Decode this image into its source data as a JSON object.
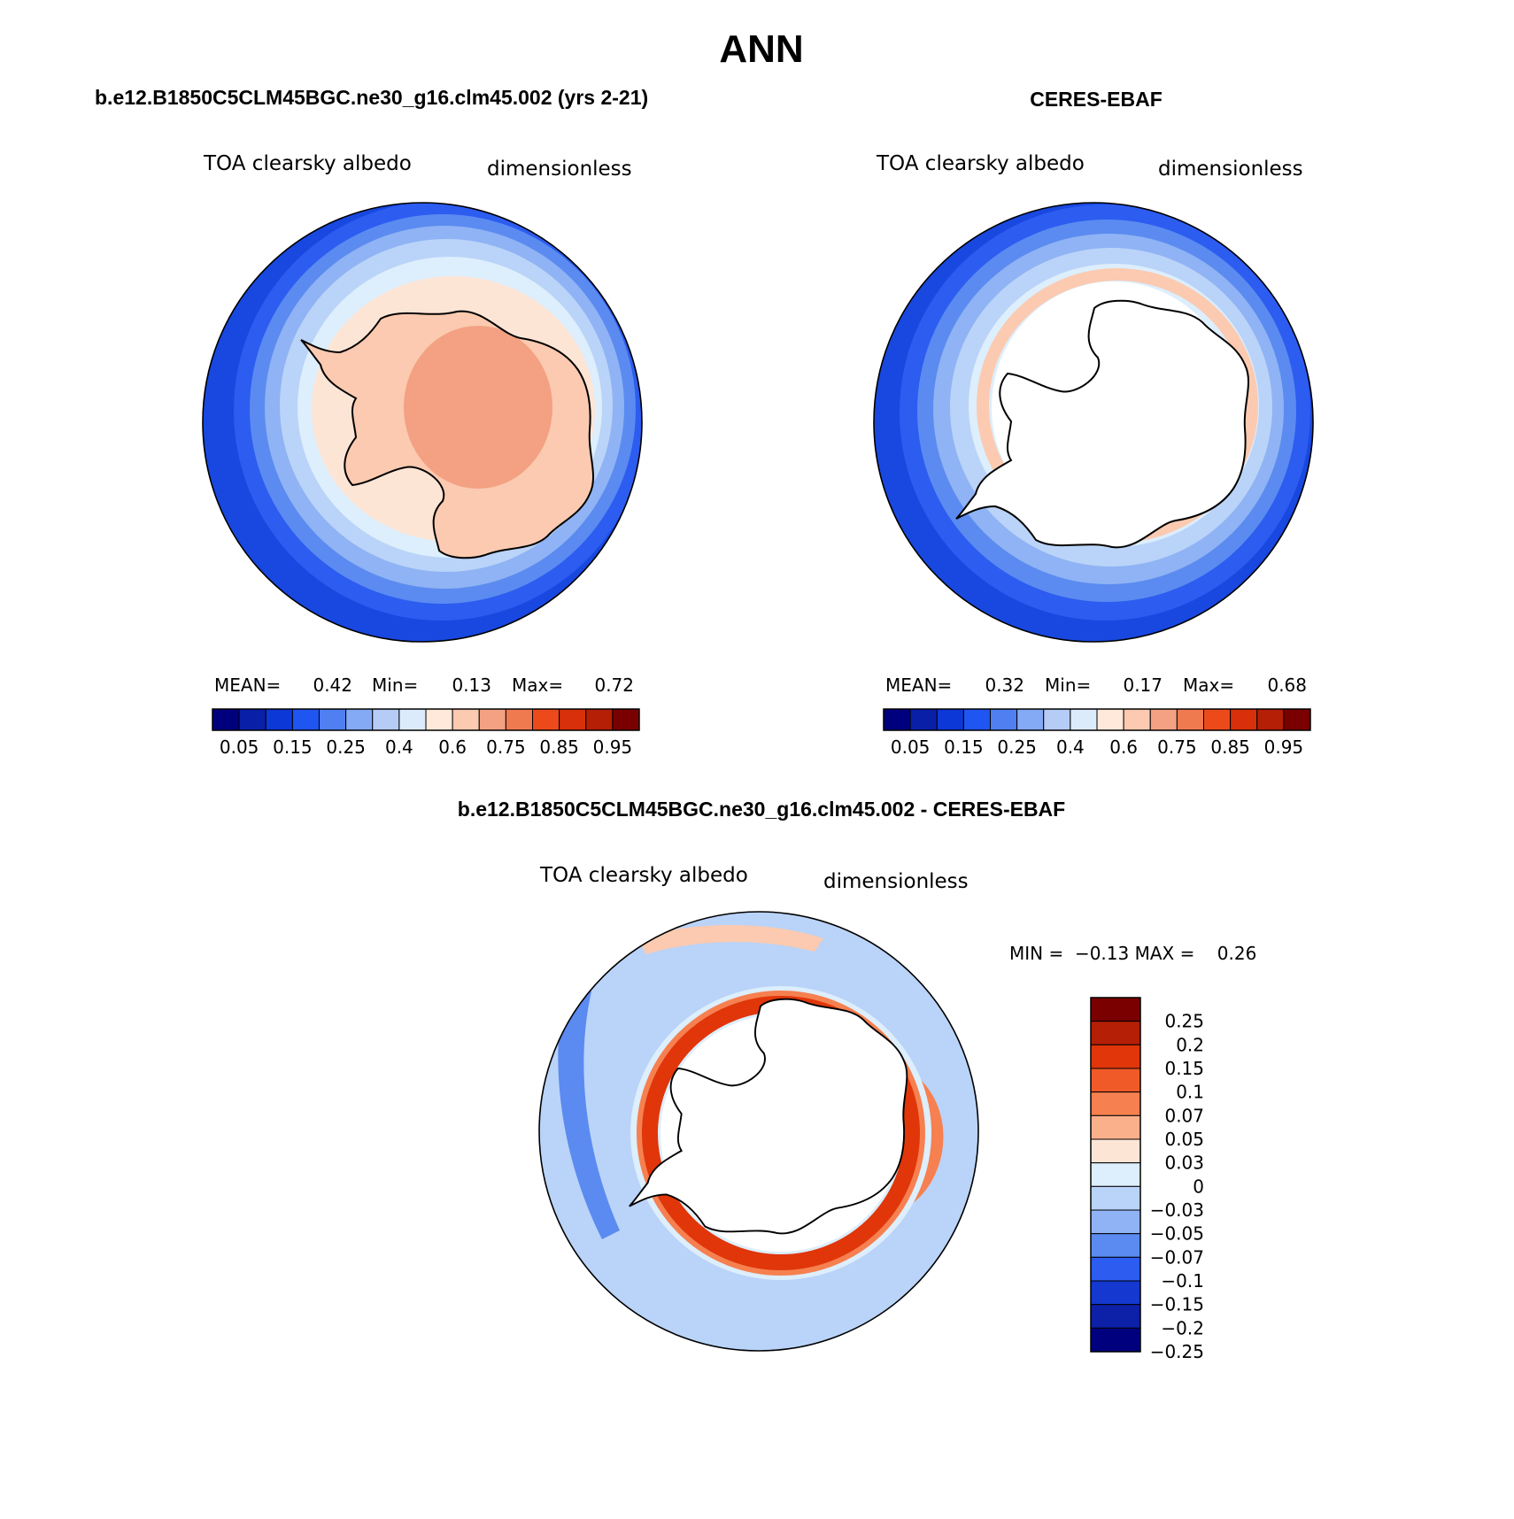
{
  "page_title": "ANN",
  "panels": [
    {
      "title": "b.e12.B1850C5CLM45BGC.ne30_g16.clm45.002 (yrs 2-21)",
      "variable": "TOA clearsky albedo",
      "units": "dimensionless",
      "stats": {
        "mean_label": "MEAN=",
        "mean": "0.42",
        "min_label": "Min=",
        "min": "0.13",
        "max_label": "Max=",
        "max": "0.72"
      }
    },
    {
      "title": "CERES-EBAF",
      "variable": "TOA clearsky albedo",
      "units": "dimensionless",
      "stats": {
        "mean_label": "MEAN=",
        "mean": "0.32",
        "min_label": "Min=",
        "min": "0.17",
        "max_label": "Max=",
        "max": "0.68"
      }
    },
    {
      "title": "b.e12.B1850C5CLM45BGC.ne30_g16.clm45.002 - CERES-EBAF",
      "variable": "TOA clearsky albedo",
      "units": "dimensionless",
      "minmax_text": "MIN =  −0.13 MAX =    0.26"
    }
  ],
  "colorbars": {
    "abs": {
      "colors": [
        "#00007f",
        "#0a1fa8",
        "#0c38d8",
        "#1f55f0",
        "#4f7ff0",
        "#84a9f5",
        "#b5ccf7",
        "#dcebfb",
        "#fee9da",
        "#fbcab0",
        "#f3a182",
        "#f07a50",
        "#ec4a1a",
        "#d8300a",
        "#b51f05",
        "#7a0000"
      ],
      "tick_labels": [
        "0.05",
        "0.15",
        "0.25",
        "0.4",
        "0.6",
        "0.75",
        "0.85",
        "0.95"
      ]
    },
    "diff": {
      "colors": [
        "#7a0000",
        "#b51f05",
        "#e0360a",
        "#f05a28",
        "#f68050",
        "#fbb08c",
        "#fde5d6",
        "#ddeefc",
        "#bad3f8",
        "#8fb3f4",
        "#5b8bf0",
        "#2c5cf0",
        "#1438d0",
        "#0c20a8",
        "#00007f"
      ],
      "tick_labels": [
        "0.25",
        "0.2",
        "0.15",
        "0.1",
        "0.07",
        "0.05",
        "0.03",
        "0",
        "−0.03",
        "−0.05",
        "−0.07",
        "−0.1",
        "−0.15",
        "−0.2",
        "−0.25"
      ]
    }
  },
  "map_colors": {
    "outer_blue": "#1848e0",
    "blue2": "#2c5cf0",
    "blue3": "#5b8bf0",
    "blue4": "#8fb3f4",
    "blue5": "#bad3f8",
    "blue6": "#ddeefc",
    "peach1": "#fde5d6",
    "peach2": "#fbcab0",
    "peach3": "#f3a182",
    "orange": "#f05a28",
    "red": "#e0360a"
  }
}
